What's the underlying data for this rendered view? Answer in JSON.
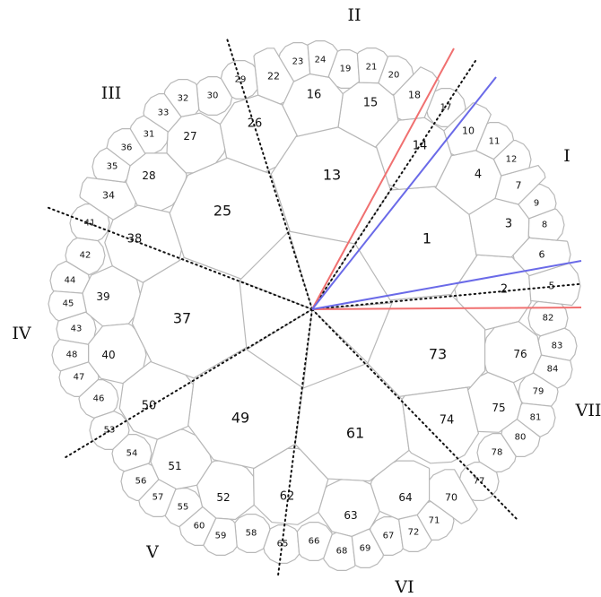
{
  "sectors": [
    "I",
    "II",
    "III",
    "IV",
    "V",
    "VI",
    "VII"
  ],
  "cells": [
    "1",
    "2",
    "3",
    "4",
    "5",
    "6",
    "7",
    "8",
    "9",
    "10",
    "11",
    "12",
    "13",
    "14",
    "15",
    "16",
    "17",
    "18",
    "19",
    "20",
    "21",
    "22",
    "23",
    "24",
    "25",
    "26",
    "27",
    "28",
    "29",
    "30",
    "31",
    "32",
    "33",
    "34",
    "35",
    "36",
    "37",
    "38",
    "39",
    "40",
    "41",
    "42",
    "43",
    "44",
    "45",
    "46",
    "47",
    "48",
    "49",
    "50",
    "51",
    "52",
    "53",
    "54",
    "55",
    "56",
    "57",
    "58",
    "59",
    "60",
    "61",
    "62",
    "63",
    "64",
    "65",
    "66",
    "67",
    "68",
    "69",
    "70",
    "71",
    "72",
    "73",
    "74",
    "75",
    "76",
    "77",
    "78",
    "79",
    "80",
    "81",
    "82",
    "83",
    "84"
  ],
  "colors": {
    "cell_stroke": "#b8b8b8",
    "red_ray": "#f07070",
    "blue_ray": "#6a6ae8",
    "dotted": "#111111"
  }
}
